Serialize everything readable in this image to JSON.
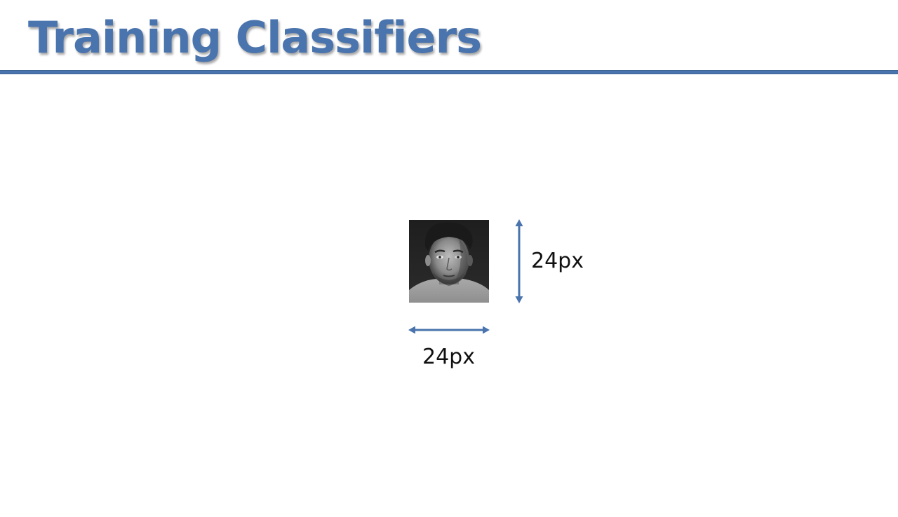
{
  "slide": {
    "title": "Training Classifiers"
  },
  "colors": {
    "accent": "#4a74ad",
    "rule": "#4a74ad"
  },
  "face_image": {
    "icon": "grayscale-face-photo"
  },
  "dimensions": {
    "height_label": "24px",
    "width_label": "24px"
  }
}
